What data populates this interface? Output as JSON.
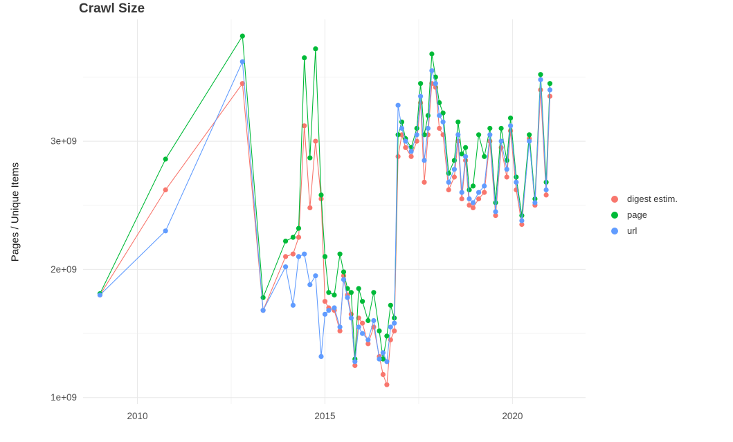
{
  "title": "Crawl Size",
  "chart_data": {
    "type": "line",
    "title": "Crawl Size",
    "xlabel": "",
    "ylabel": "Pages / Unique Items",
    "y_unit": "1e9 (values below are in billions)",
    "xlim": [
      2008.55,
      2021.95
    ],
    "ylim": [
      0.95,
      3.95
    ],
    "grid": true,
    "legend_position": "right",
    "x_major_ticks": [
      2010,
      2015,
      2020
    ],
    "x_minor_ticks": [
      2012.5,
      2017.5
    ],
    "x_tick_labels": [
      "2010",
      "2015",
      "2020"
    ],
    "y_major_ticks": [
      1,
      2,
      3
    ],
    "y_minor_ticks": [
      1.5,
      2.5,
      3.5
    ],
    "y_tick_labels": [
      "1e+09",
      "2e+09",
      "3e+09"
    ],
    "x": [
      2009.0,
      2010.75,
      2012.8,
      2013.35,
      2013.95,
      2014.15,
      2014.3,
      2014.45,
      2014.6,
      2014.75,
      2014.9,
      2015.0,
      2015.1,
      2015.25,
      2015.4,
      2015.5,
      2015.6,
      2015.7,
      2015.8,
      2015.9,
      2016.0,
      2016.15,
      2016.3,
      2016.45,
      2016.55,
      2016.65,
      2016.75,
      2016.85,
      2016.95,
      2017.05,
      2017.15,
      2017.3,
      2017.45,
      2017.55,
      2017.65,
      2017.75,
      2017.85,
      2017.95,
      2018.05,
      2018.15,
      2018.3,
      2018.45,
      2018.55,
      2018.65,
      2018.75,
      2018.85,
      2018.95,
      2019.1,
      2019.25,
      2019.4,
      2019.55,
      2019.7,
      2019.85,
      2019.95,
      2020.1,
      2020.25,
      2020.45,
      2020.6,
      2020.75,
      2020.9,
      2021.0
    ],
    "series": [
      {
        "name": "digest estim.",
        "color": "#F8766D",
        "values": [
          1.8,
          2.62,
          3.45,
          1.68,
          2.1,
          2.12,
          2.25,
          3.12,
          2.48,
          3.0,
          2.55,
          1.75,
          1.7,
          1.68,
          1.52,
          1.95,
          1.8,
          1.65,
          1.25,
          1.62,
          1.58,
          1.42,
          1.55,
          1.32,
          1.18,
          1.1,
          1.45,
          1.52,
          2.88,
          3.05,
          2.95,
          2.88,
          3.0,
          3.3,
          2.68,
          3.05,
          3.45,
          3.42,
          3.1,
          3.05,
          2.62,
          2.72,
          3.0,
          2.55,
          2.85,
          2.5,
          2.48,
          2.55,
          2.6,
          3.0,
          2.42,
          2.95,
          2.72,
          3.08,
          2.62,
          2.35,
          3.02,
          2.5,
          3.4,
          2.58,
          3.35
        ]
      },
      {
        "name": "page",
        "color": "#00BA38",
        "values": [
          1.81,
          2.86,
          3.82,
          1.78,
          2.22,
          2.25,
          2.32,
          3.65,
          2.87,
          3.72,
          2.58,
          2.1,
          1.82,
          1.8,
          2.12,
          1.98,
          1.85,
          1.82,
          1.3,
          1.85,
          1.75,
          1.6,
          1.82,
          1.52,
          1.3,
          1.48,
          1.72,
          1.62,
          3.05,
          3.15,
          3.02,
          2.95,
          3.1,
          3.45,
          3.05,
          3.2,
          3.68,
          3.5,
          3.3,
          3.22,
          2.75,
          2.85,
          3.15,
          2.9,
          2.95,
          2.62,
          2.65,
          3.05,
          2.88,
          3.1,
          2.52,
          3.1,
          2.85,
          3.18,
          2.72,
          2.42,
          3.05,
          2.55,
          3.52,
          2.68,
          3.45
        ]
      },
      {
        "name": "url",
        "color": "#619CFF",
        "values": [
          1.8,
          2.3,
          3.62,
          1.68,
          2.02,
          1.72,
          2.1,
          2.12,
          1.88,
          1.95,
          1.32,
          1.65,
          1.68,
          1.7,
          1.55,
          1.92,
          1.78,
          1.62,
          1.28,
          1.55,
          1.5,
          1.45,
          1.6,
          1.3,
          1.35,
          1.28,
          1.55,
          1.58,
          3.28,
          3.1,
          3.0,
          2.92,
          3.05,
          3.35,
          2.85,
          3.1,
          3.55,
          3.45,
          3.2,
          3.15,
          2.68,
          2.78,
          3.05,
          2.6,
          2.88,
          2.55,
          2.52,
          2.6,
          2.65,
          3.05,
          2.45,
          3.0,
          2.78,
          3.12,
          2.68,
          2.38,
          3.0,
          2.52,
          3.48,
          2.62,
          3.4
        ]
      }
    ]
  },
  "colors": {
    "grid_major": "#e8e8e8",
    "grid_minor": "#f3f3f3",
    "axis_text": "#4d4d4d",
    "title_text": "#383838"
  }
}
